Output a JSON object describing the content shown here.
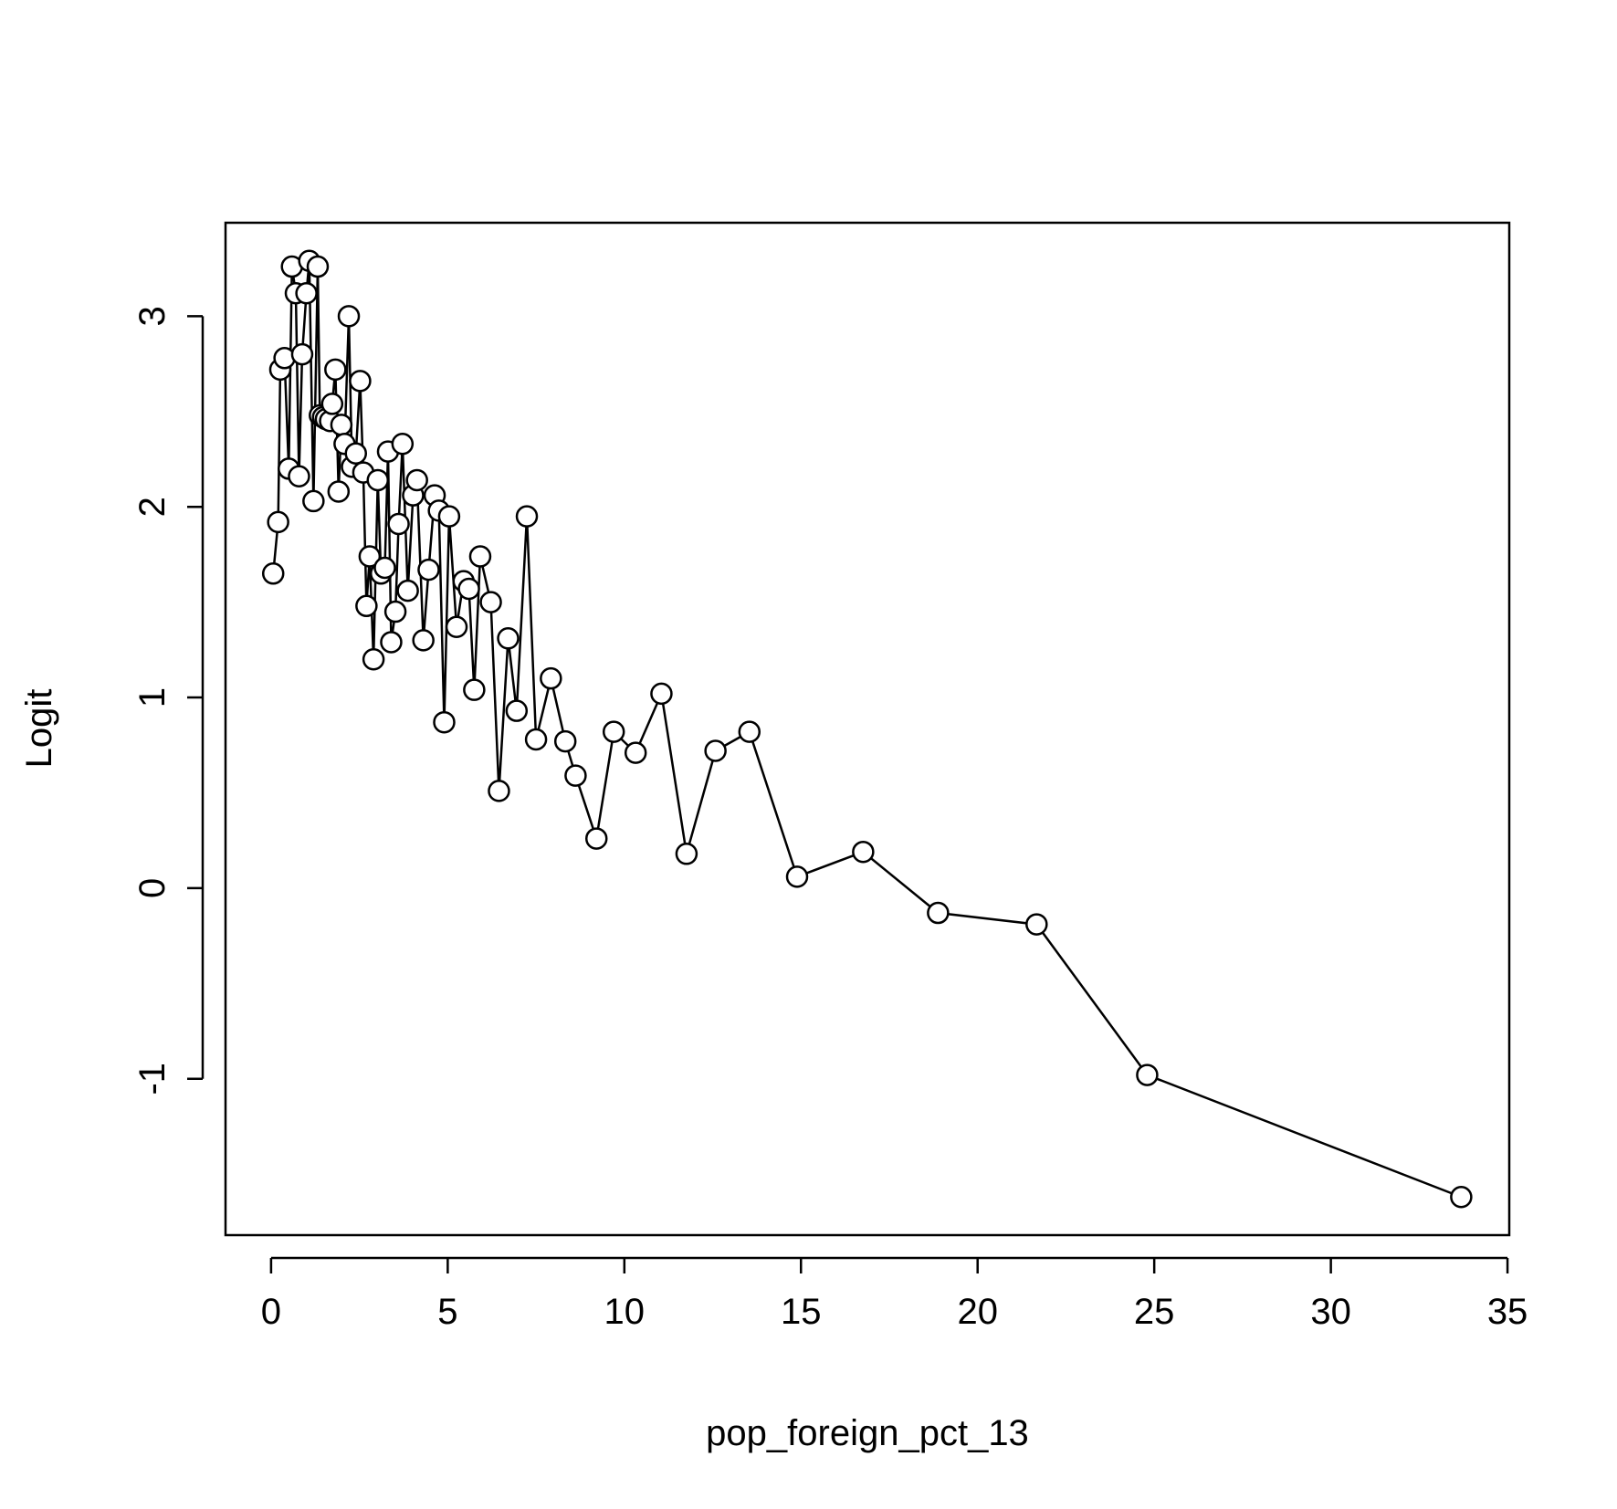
{
  "chart_data": {
    "type": "line",
    "markers": "circle",
    "color": "#000000",
    "xlabel": "pop_foreign_pct_13",
    "ylabel": "Logit",
    "x": [
      0.06,
      0.2,
      0.26,
      0.38,
      0.5,
      0.59,
      0.7,
      0.79,
      0.88,
      1.0,
      1.08,
      1.2,
      1.32,
      1.38,
      1.47,
      1.55,
      1.67,
      1.73,
      1.82,
      1.91,
      1.99,
      2.08,
      2.2,
      2.29,
      2.4,
      2.52,
      2.61,
      2.7,
      2.79,
      2.9,
      3.02,
      3.11,
      3.22,
      3.31,
      3.4,
      3.52,
      3.61,
      3.72,
      3.87,
      4.02,
      4.13,
      4.31,
      4.46,
      4.63,
      4.75,
      4.9,
      5.04,
      5.25,
      5.45,
      5.6,
      5.75,
      5.92,
      6.22,
      6.45,
      6.71,
      6.95,
      7.24,
      7.5,
      7.92,
      8.33,
      8.62,
      9.21,
      9.7,
      10.32,
      11.05,
      11.76,
      12.58,
      13.54,
      14.89,
      16.76,
      18.88,
      21.67,
      24.8,
      33.69
    ],
    "values": [
      1.65,
      1.92,
      2.72,
      2.78,
      2.2,
      3.26,
      3.12,
      2.16,
      2.8,
      3.12,
      3.29,
      2.03,
      3.26,
      2.48,
      2.47,
      2.46,
      2.45,
      2.54,
      2.72,
      2.08,
      2.43,
      2.33,
      3.0,
      2.21,
      2.28,
      2.66,
      2.18,
      1.48,
      1.74,
      1.2,
      2.14,
      1.65,
      1.68,
      2.29,
      1.29,
      1.45,
      1.91,
      2.33,
      1.56,
      2.06,
      2.14,
      1.3,
      1.67,
      2.06,
      1.98,
      0.87,
      1.95,
      1.37,
      1.61,
      1.57,
      1.04,
      1.74,
      1.5,
      0.51,
      1.31,
      0.93,
      1.95,
      0.78,
      1.1,
      0.77,
      0.59,
      0.26,
      0.82,
      0.71,
      1.02,
      0.18,
      0.72,
      0.82,
      0.06,
      0.19,
      -0.13,
      -0.19,
      -0.98,
      -1.62
    ],
    "xlim": [
      -1.29,
      35.05
    ],
    "ylim": [
      -1.82,
      3.49
    ],
    "xticks": [
      0,
      5,
      10,
      15,
      20,
      25,
      30,
      35
    ],
    "yticks": [
      -1,
      0,
      1,
      2,
      3
    ]
  }
}
